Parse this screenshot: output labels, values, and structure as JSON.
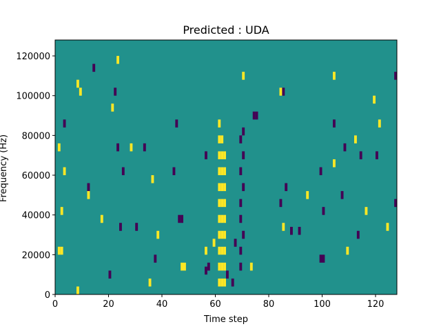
{
  "chart_data": {
    "type": "heatmap",
    "title": "Predicted : UDA",
    "xlabel": "Time step",
    "ylabel": "Frequency (Hz)",
    "xlim": [
      0,
      128
    ],
    "ylim": [
      0,
      128000
    ],
    "xticks": [
      0,
      20,
      40,
      60,
      80,
      100,
      120
    ],
    "xtick_labels": [
      "0",
      "20",
      "40",
      "60",
      "80",
      "100",
      "120"
    ],
    "yticks": [
      0,
      20000,
      40000,
      60000,
      80000,
      100000,
      120000
    ],
    "ytick_labels": [
      "0",
      "20000",
      "40000",
      "60000",
      "80000",
      "100000",
      "120000"
    ],
    "grid": false,
    "colormap": "viridis",
    "value_colors": {
      "low": "#440154",
      "background": "#21918c",
      "high": "#fde725"
    },
    "background_value": "mid",
    "cell_height_hz": 4000,
    "cells": [
      {
        "t": 61,
        "f": 4000,
        "v": "high"
      },
      {
        "t": 62,
        "f": 4000,
        "v": "high"
      },
      {
        "t": 63,
        "f": 4000,
        "v": "high"
      },
      {
        "t": 61,
        "f": 12000,
        "v": "high"
      },
      {
        "t": 62,
        "f": 12000,
        "v": "high"
      },
      {
        "t": 63,
        "f": 12000,
        "v": "high"
      },
      {
        "t": 61,
        "f": 20000,
        "v": "high"
      },
      {
        "t": 62,
        "f": 20000,
        "v": "high"
      },
      {
        "t": 63,
        "f": 20000,
        "v": "high"
      },
      {
        "t": 61,
        "f": 28000,
        "v": "high"
      },
      {
        "t": 62,
        "f": 28000,
        "v": "high"
      },
      {
        "t": 63,
        "f": 28000,
        "v": "high"
      },
      {
        "t": 61,
        "f": 36000,
        "v": "high"
      },
      {
        "t": 62,
        "f": 36000,
        "v": "high"
      },
      {
        "t": 63,
        "f": 36000,
        "v": "high"
      },
      {
        "t": 61,
        "f": 44000,
        "v": "high"
      },
      {
        "t": 62,
        "f": 44000,
        "v": "high"
      },
      {
        "t": 63,
        "f": 44000,
        "v": "high"
      },
      {
        "t": 61,
        "f": 52000,
        "v": "high"
      },
      {
        "t": 62,
        "f": 52000,
        "v": "high"
      },
      {
        "t": 63,
        "f": 52000,
        "v": "high"
      },
      {
        "t": 61,
        "f": 60000,
        "v": "high"
      },
      {
        "t": 62,
        "f": 60000,
        "v": "high"
      },
      {
        "t": 63,
        "f": 60000,
        "v": "high"
      },
      {
        "t": 61,
        "f": 68000,
        "v": "high"
      },
      {
        "t": 62,
        "f": 68000,
        "v": "high"
      },
      {
        "t": 63,
        "f": 68000,
        "v": "high"
      },
      {
        "t": 61,
        "f": 76000,
        "v": "high"
      },
      {
        "t": 62,
        "f": 76000,
        "v": "high"
      },
      {
        "t": 61,
        "f": 84000,
        "v": "high"
      },
      {
        "t": 69,
        "f": 12000,
        "v": "low"
      },
      {
        "t": 69,
        "f": 20000,
        "v": "low"
      },
      {
        "t": 70,
        "f": 28000,
        "v": "low"
      },
      {
        "t": 69,
        "f": 36000,
        "v": "low"
      },
      {
        "t": 69,
        "f": 44000,
        "v": "low"
      },
      {
        "t": 70,
        "f": 52000,
        "v": "low"
      },
      {
        "t": 69,
        "f": 60000,
        "v": "low"
      },
      {
        "t": 70,
        "f": 68000,
        "v": "low"
      },
      {
        "t": 69,
        "f": 76000,
        "v": "low"
      },
      {
        "t": 70,
        "f": 80000,
        "v": "low"
      },
      {
        "t": 88,
        "f": 30000,
        "v": "low"
      },
      {
        "t": 91,
        "f": 30000,
        "v": "low"
      },
      {
        "t": 86,
        "f": 52000,
        "v": "low"
      },
      {
        "t": 99,
        "f": 60000,
        "v": "low"
      },
      {
        "t": 100,
        "f": 40000,
        "v": "low"
      },
      {
        "t": 46,
        "f": 36000,
        "v": "low"
      },
      {
        "t": 47,
        "f": 36000,
        "v": "low"
      },
      {
        "t": 56,
        "f": 10000,
        "v": "low"
      },
      {
        "t": 64,
        "f": 8000,
        "v": "low"
      },
      {
        "t": 66,
        "f": 4000,
        "v": "low"
      },
      {
        "t": 67,
        "f": 24000,
        "v": "low"
      },
      {
        "t": 74,
        "f": 88000,
        "v": "low"
      },
      {
        "t": 75,
        "f": 88000,
        "v": "low"
      },
      {
        "t": 99,
        "f": 16000,
        "v": "low"
      },
      {
        "t": 100,
        "f": 16000,
        "v": "low"
      },
      {
        "t": 114,
        "f": 68000,
        "v": "low"
      },
      {
        "t": 127,
        "f": 44000,
        "v": "low"
      },
      {
        "t": 127,
        "f": 108000,
        "v": "low"
      },
      {
        "t": 14,
        "f": 112000,
        "v": "low"
      },
      {
        "t": 22,
        "f": 100000,
        "v": "low"
      },
      {
        "t": 3,
        "f": 84000,
        "v": "low"
      },
      {
        "t": 23,
        "f": 72000,
        "v": "low"
      },
      {
        "t": 33,
        "f": 72000,
        "v": "low"
      },
      {
        "t": 30,
        "f": 32000,
        "v": "low"
      },
      {
        "t": 24,
        "f": 32000,
        "v": "low"
      },
      {
        "t": 37,
        "f": 16000,
        "v": "low"
      },
      {
        "t": 20,
        "f": 8000,
        "v": "low"
      },
      {
        "t": 25,
        "f": 60000,
        "v": "low"
      },
      {
        "t": 12,
        "f": 52000,
        "v": "low"
      },
      {
        "t": 44,
        "f": 60000,
        "v": "low"
      },
      {
        "t": 56,
        "f": 68000,
        "v": "low"
      },
      {
        "t": 84,
        "f": 44000,
        "v": "low"
      },
      {
        "t": 104,
        "f": 84000,
        "v": "low"
      },
      {
        "t": 108,
        "f": 72000,
        "v": "low"
      },
      {
        "t": 85,
        "f": 100000,
        "v": "low"
      },
      {
        "t": 113,
        "f": 28000,
        "v": "low"
      },
      {
        "t": 120,
        "f": 68000,
        "v": "low"
      },
      {
        "t": 107,
        "f": 48000,
        "v": "low"
      },
      {
        "t": 45,
        "f": 84000,
        "v": "low"
      },
      {
        "t": 57,
        "f": 12000,
        "v": "low"
      },
      {
        "t": 1,
        "f": 20000,
        "v": "high"
      },
      {
        "t": 2,
        "f": 20000,
        "v": "high"
      },
      {
        "t": 2,
        "f": 40000,
        "v": "high"
      },
      {
        "t": 3,
        "f": 60000,
        "v": "high"
      },
      {
        "t": 1,
        "f": 72000,
        "v": "high"
      },
      {
        "t": 9,
        "f": 100000,
        "v": "high"
      },
      {
        "t": 8,
        "f": 104000,
        "v": "high"
      },
      {
        "t": 23,
        "f": 116000,
        "v": "high"
      },
      {
        "t": 21,
        "f": 92000,
        "v": "high"
      },
      {
        "t": 28,
        "f": 72000,
        "v": "high"
      },
      {
        "t": 47,
        "f": 12000,
        "v": "high"
      },
      {
        "t": 48,
        "f": 12000,
        "v": "high"
      },
      {
        "t": 38,
        "f": 28000,
        "v": "high"
      },
      {
        "t": 56,
        "f": 20000,
        "v": "high"
      },
      {
        "t": 73,
        "f": 12000,
        "v": "high"
      },
      {
        "t": 84,
        "f": 100000,
        "v": "high"
      },
      {
        "t": 104,
        "f": 108000,
        "v": "high"
      },
      {
        "t": 112,
        "f": 76000,
        "v": "high"
      },
      {
        "t": 119,
        "f": 96000,
        "v": "high"
      },
      {
        "t": 124,
        "f": 32000,
        "v": "high"
      },
      {
        "t": 121,
        "f": 84000,
        "v": "high"
      },
      {
        "t": 12,
        "f": 48000,
        "v": "high"
      },
      {
        "t": 17,
        "f": 36000,
        "v": "high"
      },
      {
        "t": 36,
        "f": 56000,
        "v": "high"
      },
      {
        "t": 70,
        "f": 108000,
        "v": "high"
      },
      {
        "t": 85,
        "f": 32000,
        "v": "high"
      },
      {
        "t": 94,
        "f": 48000,
        "v": "high"
      },
      {
        "t": 104,
        "f": 64000,
        "v": "high"
      },
      {
        "t": 109,
        "f": 20000,
        "v": "high"
      },
      {
        "t": 59,
        "f": 24000,
        "v": "high"
      },
      {
        "t": 8,
        "f": 0,
        "v": "high"
      },
      {
        "t": 35,
        "f": 4000,
        "v": "high"
      },
      {
        "t": 116,
        "f": 40000,
        "v": "high"
      }
    ]
  }
}
